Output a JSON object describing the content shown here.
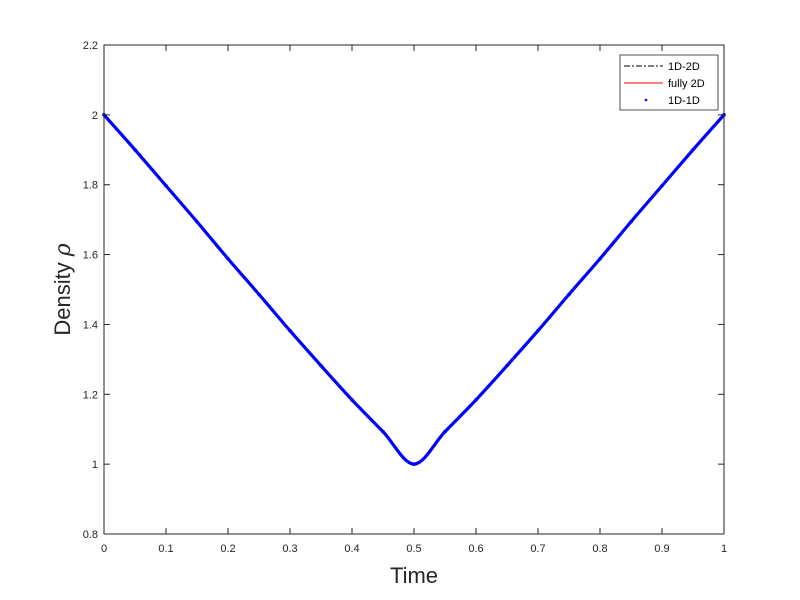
{
  "chart_data": {
    "type": "line",
    "title": "",
    "xlabel": "Time",
    "ylabel": "Density",
    "ylabel_symbol": "ρ",
    "xlim": [
      0,
      1
    ],
    "ylim": [
      0.8,
      2.2
    ],
    "xticks": [
      0,
      0.1,
      0.2,
      0.3,
      0.4,
      0.5,
      0.6,
      0.7,
      0.8,
      0.9,
      1
    ],
    "xtick_labels": [
      "0",
      "0.1",
      "0.2",
      "0.3",
      "0.4",
      "0.5",
      "0.6",
      "0.7",
      "0.8",
      "0.9",
      "1"
    ],
    "yticks": [
      0.8,
      1,
      1.2,
      1.4,
      1.6,
      1.8,
      2,
      2.2
    ],
    "ytick_labels": [
      "0.8",
      "1",
      "1.2",
      "1.4",
      "1.6",
      "1.8",
      "2",
      "2.2"
    ],
    "grid": false,
    "legend_position": "top-right",
    "x": [
      0,
      0.05,
      0.1,
      0.15,
      0.2,
      0.25,
      0.3,
      0.35,
      0.4,
      0.45,
      0.5,
      0.55,
      0.6,
      0.65,
      0.7,
      0.75,
      0.8,
      0.85,
      0.9,
      0.95,
      1
    ],
    "series": [
      {
        "name": "1D-2D",
        "style": "dash-dot",
        "color": "#000000",
        "values": [
          2.0,
          1.9,
          1.797,
          1.694,
          1.588,
          1.486,
          1.382,
          1.282,
          1.184,
          1.093,
          1.0,
          1.093,
          1.184,
          1.282,
          1.382,
          1.486,
          1.588,
          1.694,
          1.797,
          1.9,
          2.0
        ]
      },
      {
        "name": "fully 2D",
        "style": "solid",
        "color": "#ff0000",
        "values": [
          2.0,
          1.9,
          1.797,
          1.694,
          1.588,
          1.486,
          1.382,
          1.282,
          1.184,
          1.093,
          1.0,
          1.093,
          1.184,
          1.282,
          1.382,
          1.486,
          1.588,
          1.694,
          1.797,
          1.9,
          2.0
        ]
      },
      {
        "name": "1D-1D",
        "style": "dots",
        "color": "#0000ff",
        "values": [
          2.0,
          1.9,
          1.797,
          1.694,
          1.588,
          1.486,
          1.382,
          1.282,
          1.184,
          1.093,
          1.0,
          1.093,
          1.184,
          1.282,
          1.382,
          1.486,
          1.588,
          1.694,
          1.797,
          1.9,
          2.0
        ]
      }
    ]
  }
}
